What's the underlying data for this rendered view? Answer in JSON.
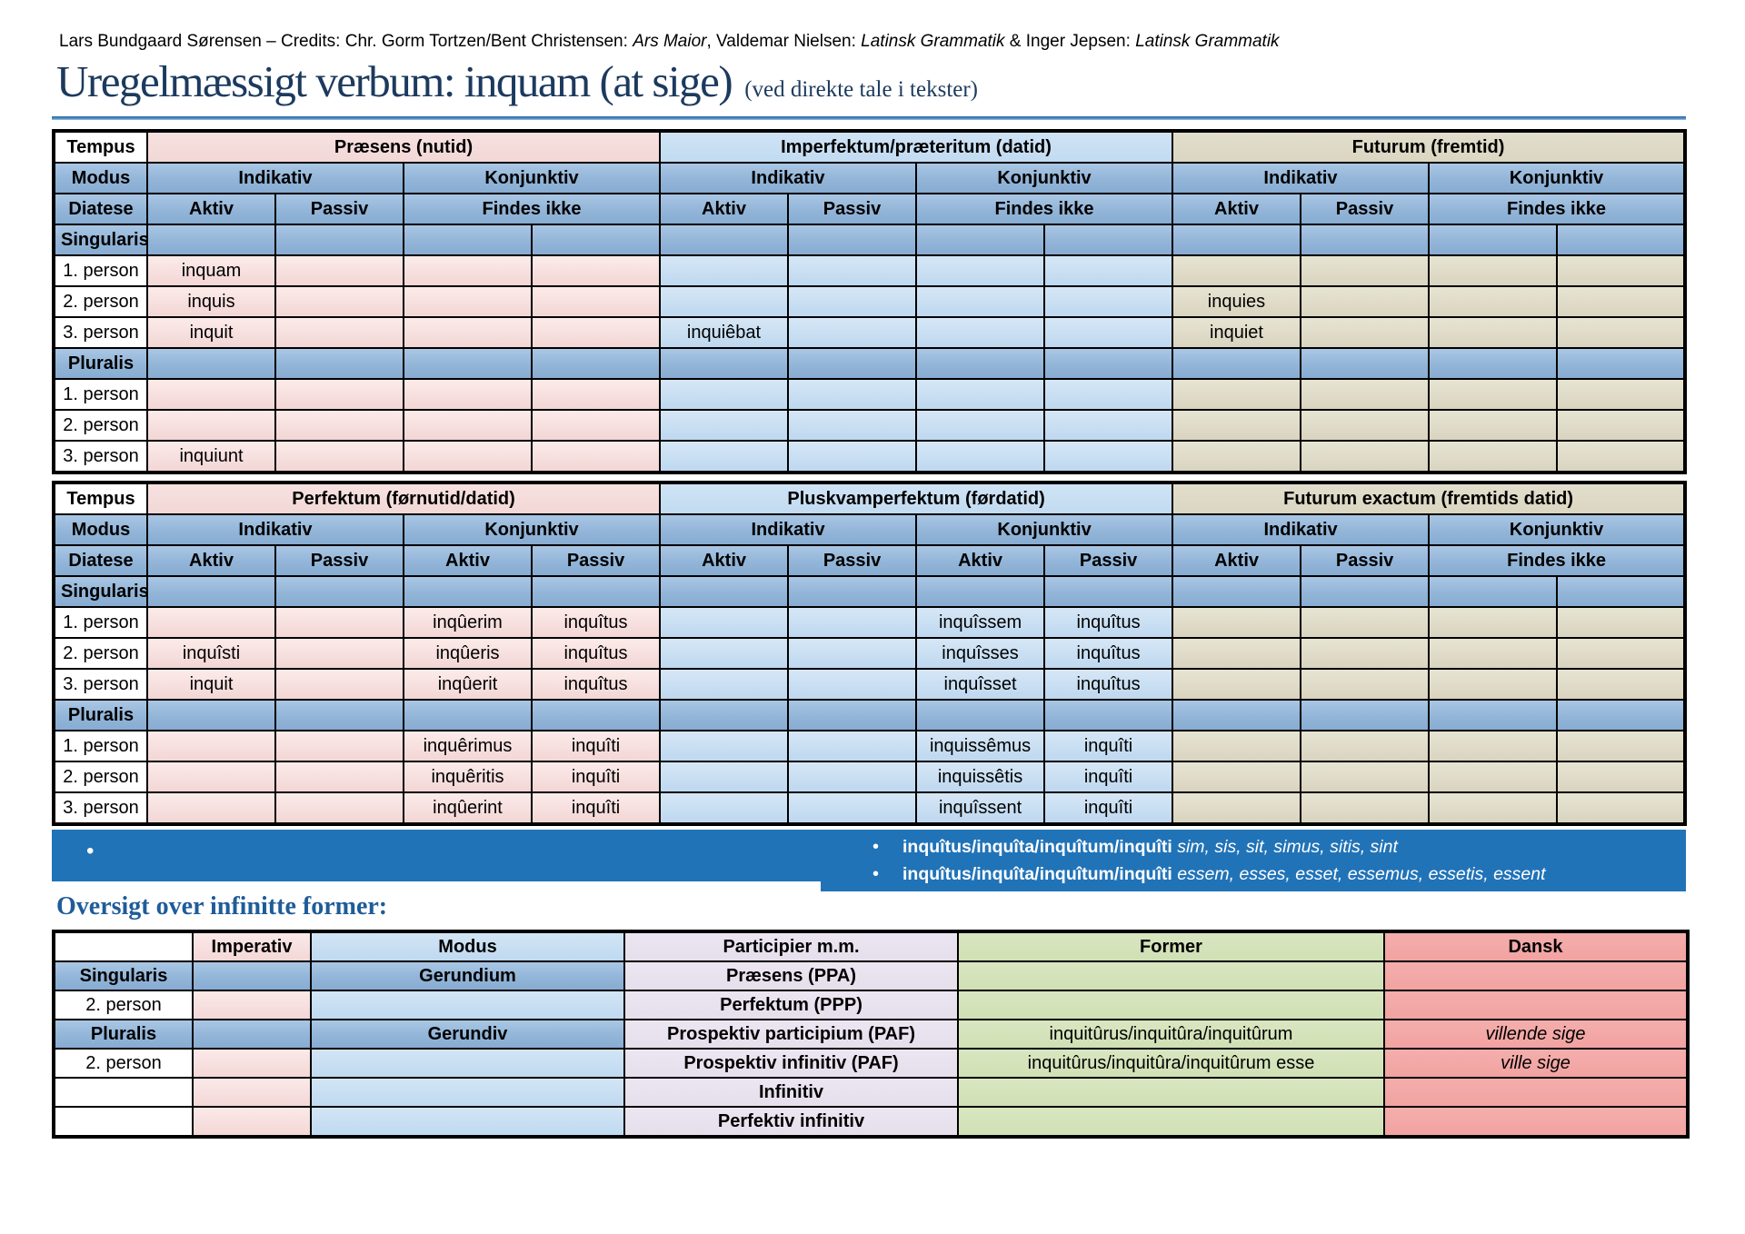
{
  "credit": {
    "runs": [
      {
        "text": "Lars Bundgaard Sørensen – Credits: Chr. Gorm Tortzen/Bent Christensen: ",
        "italic": false
      },
      {
        "text": "Ars Maior",
        "italic": true
      },
      {
        "text": ", Valdemar Nielsen: ",
        "italic": false
      },
      {
        "text": "Latinsk Grammatik",
        "italic": true
      },
      {
        "text": " & Inger Jepsen: ",
        "italic": false
      },
      {
        "text": "Latinsk Grammatik",
        "italic": true
      }
    ]
  },
  "title": {
    "main": "Uregelmæssigt verbum: inquam (at sige)",
    "suffix": "(ved direkte tale i tekster)"
  },
  "finite_tables": [
    {
      "corner": "Tempus",
      "row_headers": {
        "modus": "Modus",
        "diatese": "Diatese"
      },
      "groups": [
        {
          "label": "Præsens (nutid)",
          "theme": "pink",
          "modus": [
            "Indikativ",
            "Konjunktiv"
          ],
          "diatese": [
            {
              "label": "Aktiv",
              "span": 1
            },
            {
              "label": "Passiv",
              "span": 1
            },
            {
              "label": "Findes ikke",
              "span": 2
            }
          ]
        },
        {
          "label": "Imperfektum/præteritum (datid)",
          "theme": "lblue",
          "modus": [
            "Indikativ",
            "Konjunktiv"
          ],
          "diatese": [
            {
              "label": "Aktiv",
              "span": 1
            },
            {
              "label": "Passiv",
              "span": 1
            },
            {
              "label": "Findes ikke",
              "span": 2
            }
          ]
        },
        {
          "label": "Futurum (fremtid)",
          "theme": "tan",
          "modus": [
            "Indikativ",
            "Konjunktiv"
          ],
          "diatese": [
            {
              "label": "Aktiv",
              "span": 1
            },
            {
              "label": "Passiv",
              "span": 1
            },
            {
              "label": "Findes ikke",
              "span": 2
            }
          ]
        }
      ],
      "sections": [
        {
          "label": "Singularis",
          "rows": [
            {
              "label": "1. person",
              "cells": [
                "inquam",
                "",
                "",
                "",
                "",
                "",
                "",
                "",
                "",
                "",
                "",
                ""
              ]
            },
            {
              "label": "2. person",
              "cells": [
                "inquis",
                "",
                "",
                "",
                "",
                "",
                "",
                "",
                "inquies",
                "",
                "",
                ""
              ]
            },
            {
              "label": "3. person",
              "cells": [
                "inquit",
                "",
                "",
                "",
                "inquiêbat",
                "",
                "",
                "",
                "inquiet",
                "",
                "",
                ""
              ]
            }
          ]
        },
        {
          "label": "Pluralis",
          "rows": [
            {
              "label": "1. person",
              "cells": [
                "",
                "",
                "",
                "",
                "",
                "",
                "",
                "",
                "",
                "",
                "",
                ""
              ]
            },
            {
              "label": "2. person",
              "cells": [
                "",
                "",
                "",
                "",
                "",
                "",
                "",
                "",
                "",
                "",
                "",
                ""
              ]
            },
            {
              "label": "3. person",
              "cells": [
                "inquiunt",
                "",
                "",
                "",
                "",
                "",
                "",
                "",
                "",
                "",
                "",
                ""
              ]
            }
          ]
        }
      ]
    },
    {
      "corner": "Tempus",
      "row_headers": {
        "modus": "Modus",
        "diatese": "Diatese"
      },
      "groups": [
        {
          "label": "Perfektum (førnutid/datid)",
          "theme": "pink",
          "modus": [
            "Indikativ",
            "Konjunktiv"
          ],
          "diatese": [
            {
              "label": "Aktiv",
              "span": 1
            },
            {
              "label": "Passiv",
              "span": 1
            },
            {
              "label": "Aktiv",
              "span": 1
            },
            {
              "label": "Passiv",
              "span": 1
            }
          ]
        },
        {
          "label": "Pluskvamperfektum (førdatid)",
          "theme": "lblue",
          "modus": [
            "Indikativ",
            "Konjunktiv"
          ],
          "diatese": [
            {
              "label": "Aktiv",
              "span": 1
            },
            {
              "label": "Passiv",
              "span": 1
            },
            {
              "label": "Aktiv",
              "span": 1
            },
            {
              "label": "Passiv",
              "span": 1
            }
          ]
        },
        {
          "label": "Futurum exactum (fremtids datid)",
          "theme": "tan",
          "modus": [
            "Indikativ",
            "Konjunktiv"
          ],
          "diatese": [
            {
              "label": "Aktiv",
              "span": 1
            },
            {
              "label": "Passiv",
              "span": 1
            },
            {
              "label": "Findes ikke",
              "span": 2
            }
          ]
        }
      ],
      "sections": [
        {
          "label": "Singularis",
          "rows": [
            {
              "label": "1. person",
              "cells": [
                "",
                "",
                "inqûerim",
                "inquîtus",
                "",
                "",
                "inquîssem",
                "inquîtus",
                "",
                "",
                "",
                ""
              ]
            },
            {
              "label": "2. person",
              "cells": [
                "inquîsti",
                "",
                "inqûeris",
                "inquîtus",
                "",
                "",
                "inquîsses",
                "inquîtus",
                "",
                "",
                "",
                ""
              ]
            },
            {
              "label": "3. person",
              "cells": [
                "inquit",
                "",
                "inqûerit",
                "inquîtus",
                "",
                "",
                "inquîsset",
                "inquîtus",
                "",
                "",
                "",
                ""
              ]
            }
          ]
        },
        {
          "label": "Pluralis",
          "rows": [
            {
              "label": "1. person",
              "cells": [
                "",
                "",
                "inquêrimus",
                "inquîti",
                "",
                "",
                "inquissêmus",
                "inquîti",
                "",
                "",
                "",
                ""
              ]
            },
            {
              "label": "2. person",
              "cells": [
                "",
                "",
                "inquêritis",
                "inquîti",
                "",
                "",
                "inquissêtis",
                "inquîti",
                "",
                "",
                "",
                ""
              ]
            },
            {
              "label": "3. person",
              "cells": [
                "",
                "",
                "inqûerint",
                "inquîti",
                "",
                "",
                "inquîssent",
                "inquîti",
                "",
                "",
                "",
                ""
              ]
            }
          ]
        }
      ]
    }
  ],
  "notes": {
    "left_bullet": "•",
    "bullets": [
      {
        "latin": "inquîtus/inquîta/inquîtum/inquîti",
        "forms": " sim, sis, sit, simus, sitis, sint"
      },
      {
        "latin": "inquîtus/inquîta/inquîtum/inquîti",
        "forms": " essem, esses, esset, essemus, essetis, essent"
      }
    ]
  },
  "section_heading": "Oversigt over infinitte former:",
  "infinite_table": {
    "headers": [
      "",
      "Imperativ",
      "Modus",
      "Participier m.m.",
      "Former",
      "Dansk"
    ],
    "rows": [
      {
        "band": true,
        "cells": [
          "Singularis",
          "",
          "Gerundium",
          "Præsens (PPA)",
          "",
          ""
        ]
      },
      {
        "band": false,
        "cells": [
          "2. person",
          "",
          "",
          "Perfektum (PPP)",
          "",
          ""
        ]
      },
      {
        "band": true,
        "cells": [
          "Pluralis",
          "",
          "Gerundiv",
          "Prospektiv participium (PAF)",
          "inquitûrus/inquitûra/inquitûrum",
          "villende sige"
        ]
      },
      {
        "band": false,
        "cells": [
          "2. person",
          "",
          "",
          "Prospektiv infinitiv (PAF)",
          "inquitûrus/inquitûra/inquitûrum esse",
          "ville sige"
        ]
      },
      {
        "band": false,
        "cells": [
          "",
          "",
          "",
          "Infinitiv",
          "",
          ""
        ]
      },
      {
        "band": false,
        "cells": [
          "",
          "",
          "",
          "Perfektiv infinitiv",
          "",
          ""
        ]
      }
    ]
  },
  "colors": {
    "title_navy": "#1c3a5e",
    "heading_blue": "#1f5c99",
    "band_blue": "#2173b7",
    "header_blue": "#95b3d7",
    "pink": "#f2d8d7",
    "light_blue": "#bed8ef",
    "tan": "#d8d4bf",
    "lavender": "#e5dfec",
    "green": "#d0e0b4",
    "salmon": "#f1a3a1"
  }
}
